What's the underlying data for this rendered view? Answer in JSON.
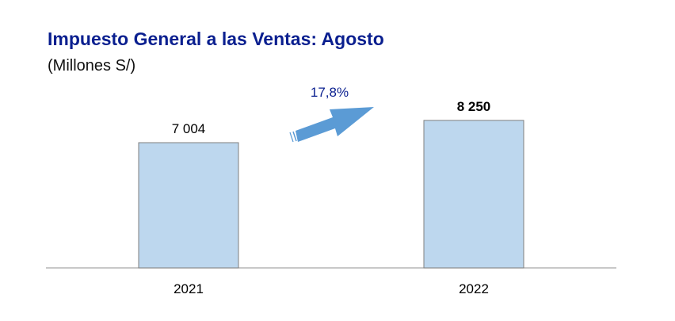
{
  "chart_data": {
    "type": "bar",
    "title": "Impuesto General a las Ventas: Agosto",
    "subtitle": "(Millones S/)",
    "categories": [
      "2021",
      "2022"
    ],
    "values": [
      7004,
      8250
    ],
    "value_labels": [
      "7 004",
      "8 250"
    ],
    "growth_label": "17,8%",
    "xlabel": "",
    "ylabel": "",
    "ylim": [
      0,
      10000
    ],
    "grid": false,
    "legend": "none",
    "colors": {
      "bar_fill": "#bdd7ee",
      "bar_stroke": "#7f7f7f",
      "arrow": "#5b9bd5",
      "title": "#0a1f8f",
      "growth_label": "#0a1f8f",
      "axis": "#a6a6a6"
    }
  }
}
